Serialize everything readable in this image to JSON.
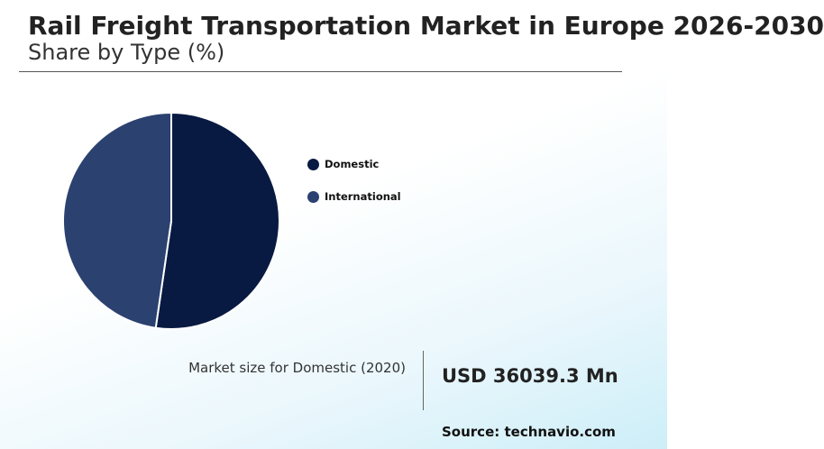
{
  "header": {
    "title": "Rail Freight Transportation Market in Europe 2026-2030",
    "subtitle": "Share by Type (%)"
  },
  "chart_data": {
    "type": "pie",
    "title": "Rail Freight Transportation Market in Europe 2026-2030",
    "subtitle": "Share by Type (%)",
    "categories": [
      "Domestic",
      "International"
    ],
    "values": [
      52.3,
      47.7
    ],
    "colors": [
      "#081a42",
      "#2b4170"
    ],
    "legend_position": "right"
  },
  "metric": {
    "label": "Market size for Domestic (2020)",
    "value": "USD 36039.3 Mn"
  },
  "footer": {
    "source": "Source: technavio.com"
  }
}
